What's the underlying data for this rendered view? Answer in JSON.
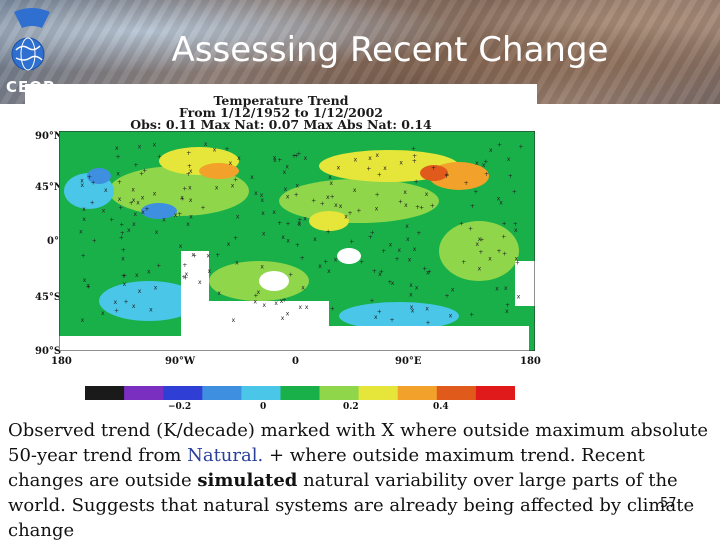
{
  "header": {
    "logo_text": "CEOP",
    "title": "Assessing Recent Change"
  },
  "figure": {
    "title_line1": "Temperature Trend",
    "title_line2": "From 1/12/1952 to 1/12/2002",
    "title_line3": "Obs:  0.11  Max Nat:  0.07  Max Abs Nat:  0.14",
    "lat_labels": [
      "90°N",
      "45°N",
      "0°",
      "45°S",
      "90°S"
    ],
    "lon_labels": [
      "180",
      "90°W",
      "0",
      "90°E",
      "180"
    ],
    "colorbar": {
      "colors": [
        "#1a1a1a",
        "#7a2fc0",
        "#2f3fd6",
        "#3f8fe0",
        "#49c6e8",
        "#19b04a",
        "#8fd64a",
        "#e6e63a",
        "#f2a12a",
        "#e05a1c",
        "#e01a1a"
      ],
      "tick_labels": [
        "−0.2",
        "0",
        "0.2",
        "0.4"
      ]
    },
    "map_colors": {
      "base": "#19b04a",
      "light": "#8fd64a",
      "cyan": "#49c6e8",
      "blue": "#3f8fe0",
      "yellow": "#e6e63a",
      "orange": "#f2a12a",
      "red": "#e05a1c",
      "missing": "#ffffff"
    }
  },
  "caption": {
    "part1": "Observed trend (K/decade)  marked with X where outside maximum absolute 50-year trend from ",
    "natural": "Natural.",
    "part2": " + where outside maximum trend. Recent changes are outside ",
    "simulated": "simulated",
    "part3": " natural variability over large parts of the world. Suggests that natural systems are already being affected by climate change"
  },
  "page_number": "57"
}
